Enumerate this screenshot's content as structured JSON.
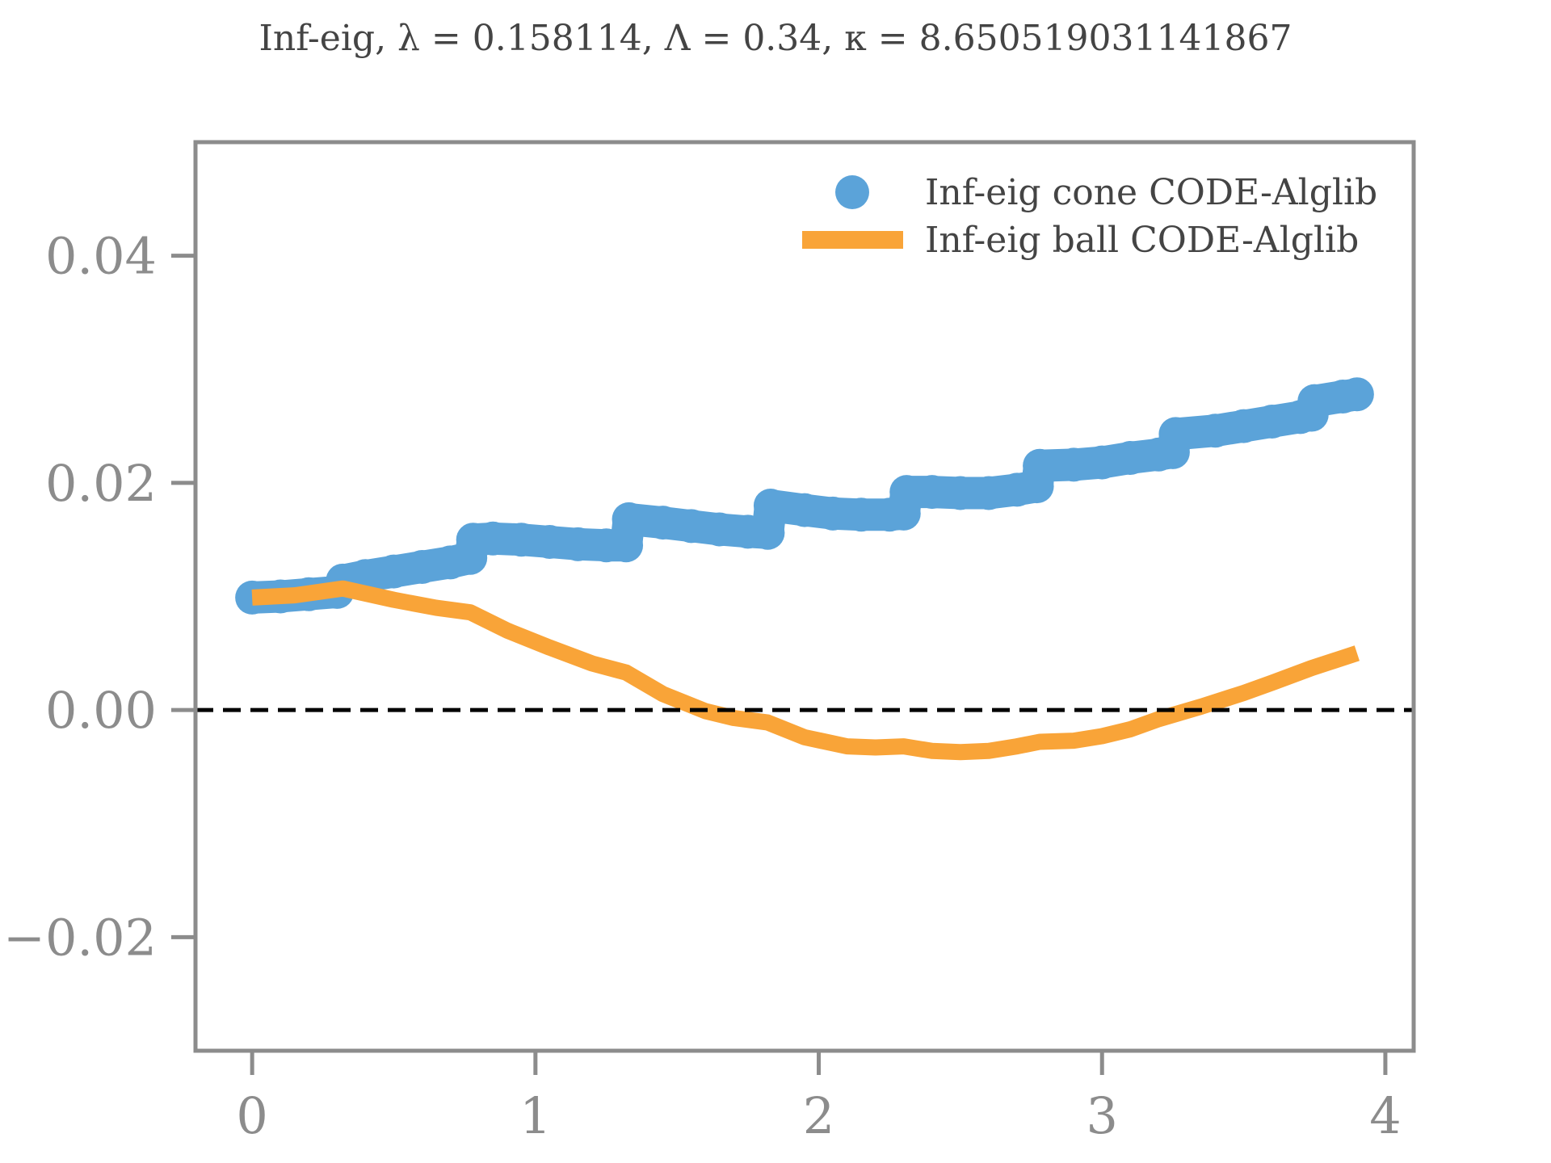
{
  "chart_data": {
    "type": "scatter",
    "title": "Inf-eig, λ = 0.158114, Λ = 0.34, κ = 8.650519031141867",
    "xlabel": "",
    "ylabel": "",
    "xlim": [
      -0.2,
      4.1
    ],
    "ylim": [
      -0.03,
      0.05
    ],
    "xticks": [
      0,
      1,
      2,
      3,
      4
    ],
    "xtick_labels": [
      "0",
      "1",
      "2",
      "3",
      "4"
    ],
    "yticks": [
      -0.02,
      0.0,
      0.02,
      0.04
    ],
    "ytick_labels": [
      "−0.02",
      "0.00",
      "0.02",
      "0.04"
    ],
    "grid": false,
    "legend_position": "top-right",
    "reference_line": {
      "y": 0.0,
      "style": "dashed",
      "color": "#000000"
    },
    "colors": {
      "frame": "#8c8c8c",
      "cone": "#5ba3d9",
      "ball": "#f9a438"
    },
    "series": [
      {
        "name": "Inf-eig cone CODE-Alglib",
        "kind": "scatter",
        "color": "#5ba3d9",
        "x": [
          0.0,
          0.1,
          0.2,
          0.3,
          0.32,
          0.4,
          0.5,
          0.6,
          0.7,
          0.77,
          0.78,
          0.85,
          0.95,
          1.05,
          1.15,
          1.25,
          1.32,
          1.33,
          1.45,
          1.55,
          1.65,
          1.75,
          1.82,
          1.83,
          1.95,
          2.05,
          2.15,
          2.25,
          2.3,
          2.31,
          2.4,
          2.5,
          2.6,
          2.7,
          2.77,
          2.78,
          2.9,
          3.0,
          3.1,
          3.2,
          3.25,
          3.26,
          3.4,
          3.5,
          3.6,
          3.7,
          3.74,
          3.75,
          3.85,
          3.9
        ],
        "y": [
          0.0099,
          0.01,
          0.0102,
          0.0104,
          0.0114,
          0.0118,
          0.0122,
          0.0126,
          0.013,
          0.0134,
          0.015,
          0.0151,
          0.015,
          0.0148,
          0.0146,
          0.0145,
          0.0145,
          0.0168,
          0.0165,
          0.0162,
          0.0159,
          0.0157,
          0.0156,
          0.018,
          0.0176,
          0.0173,
          0.0172,
          0.0172,
          0.0173,
          0.0192,
          0.0192,
          0.0191,
          0.0191,
          0.0194,
          0.0197,
          0.0215,
          0.0216,
          0.0218,
          0.0222,
          0.0225,
          0.0227,
          0.0243,
          0.0246,
          0.025,
          0.0254,
          0.0258,
          0.026,
          0.0272,
          0.0276,
          0.0278
        ]
      },
      {
        "name": "Inf-eig ball CODE-Alglib",
        "kind": "line",
        "color": "#f9a438",
        "x": [
          0.0,
          0.15,
          0.32,
          0.5,
          0.65,
          0.77,
          0.9,
          1.05,
          1.2,
          1.32,
          1.45,
          1.6,
          1.7,
          1.82,
          1.95,
          2.1,
          2.2,
          2.3,
          2.4,
          2.5,
          2.6,
          2.7,
          2.78,
          2.9,
          3.0,
          3.1,
          3.2,
          3.35,
          3.5,
          3.6,
          3.74,
          3.9
        ],
        "y": [
          0.0099,
          0.0101,
          0.0107,
          0.0097,
          0.009,
          0.0086,
          0.007,
          0.0055,
          0.0041,
          0.0033,
          0.0014,
          -0.0001,
          -0.0007,
          -0.0011,
          -0.0024,
          -0.0032,
          -0.0033,
          -0.0032,
          -0.0036,
          -0.0037,
          -0.0036,
          -0.0032,
          -0.0028,
          -0.0027,
          -0.0023,
          -0.0017,
          -0.0008,
          0.0003,
          0.0015,
          0.0024,
          0.0037,
          0.005
        ]
      }
    ]
  }
}
